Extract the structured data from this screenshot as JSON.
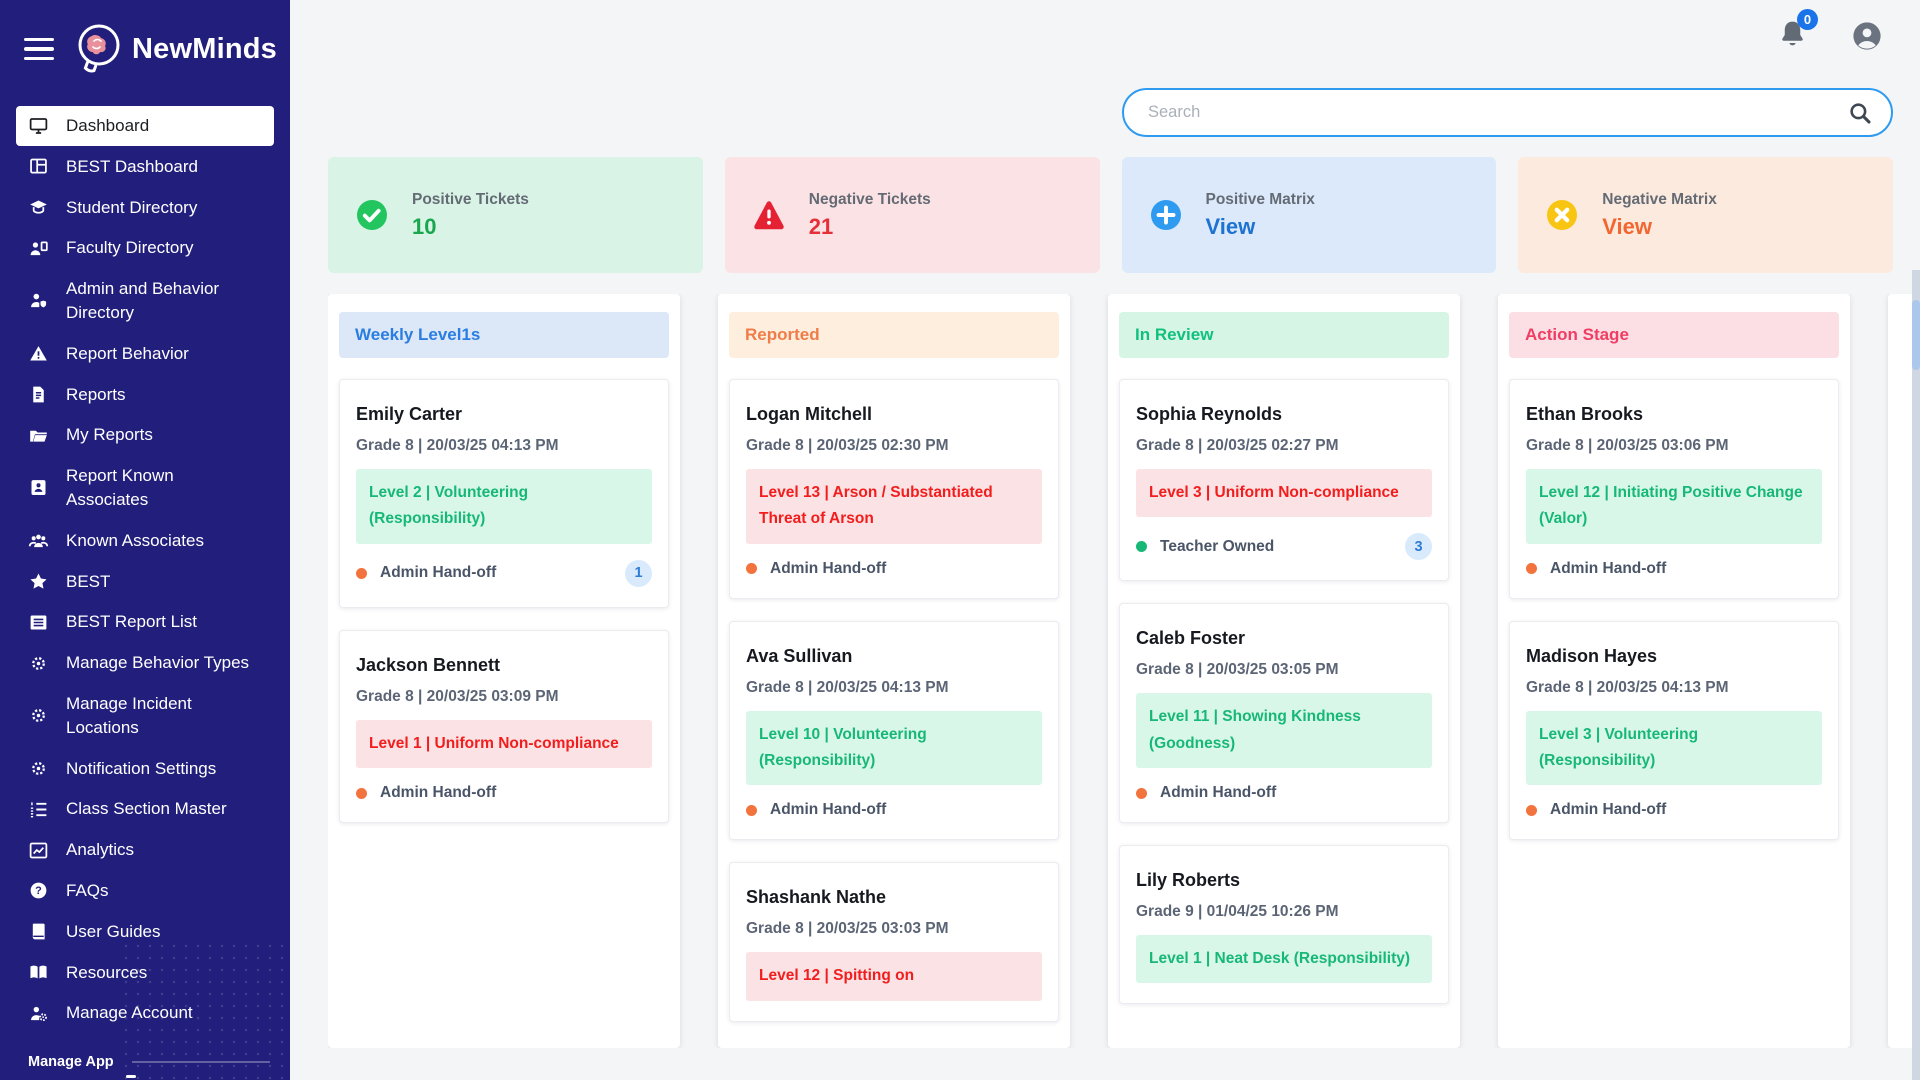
{
  "sidebar": {
    "brand": "NewMinds",
    "items": [
      {
        "label": "Dashboard",
        "icon": "monitor",
        "active": true
      },
      {
        "label": "BEST Dashboard",
        "icon": "grid"
      },
      {
        "label": "Student Directory",
        "icon": "graduation-cap"
      },
      {
        "label": "Faculty Directory",
        "icon": "person-board"
      },
      {
        "label": "Admin and Behavior Directory",
        "icon": "person-shield"
      },
      {
        "label": "Report Behavior",
        "icon": "warning"
      },
      {
        "label": "Reports",
        "icon": "document"
      },
      {
        "label": "My Reports",
        "icon": "folder"
      },
      {
        "label": "Report Known Associates",
        "icon": "contact-card"
      },
      {
        "label": "Known Associates",
        "icon": "people"
      },
      {
        "label": "BEST",
        "icon": "star"
      },
      {
        "label": "BEST Report List",
        "icon": "list-box"
      },
      {
        "label": "Manage Behavior Types",
        "icon": "gears"
      },
      {
        "label": "Manage Incident Locations",
        "icon": "gears"
      },
      {
        "label": "Notification Settings",
        "icon": "gears"
      },
      {
        "label": "Class Section Master",
        "icon": "ordered-list"
      },
      {
        "label": "Analytics",
        "icon": "chart"
      },
      {
        "label": "FAQs",
        "icon": "question-circle"
      },
      {
        "label": "User Guides",
        "icon": "book"
      },
      {
        "label": "Resources",
        "icon": "open-book"
      },
      {
        "label": "Manage Account",
        "icon": "person-gear"
      }
    ],
    "section_label": "Manage App"
  },
  "topbar": {
    "notification_count": "0",
    "search_placeholder": "Search"
  },
  "stat_cards": [
    {
      "label": "Positive Tickets",
      "value": "10",
      "icon": "check-circle",
      "bg": "#d9f3e6",
      "value_color": "#18a74d"
    },
    {
      "label": "Negative Tickets",
      "value": "21",
      "icon": "warning-triangle",
      "bg": "#fbe2e5",
      "value_color": "#e5303a"
    },
    {
      "label": "Positive Matrix",
      "value": "View",
      "icon": "plus-circle",
      "bg": "#dbe9fa",
      "value_color": "#1d72d2"
    },
    {
      "label": "Negative Matrix",
      "value": "View",
      "icon": "x-circle",
      "bg": "#fdeade",
      "value_color": "#f2662f"
    }
  ],
  "board": {
    "columns": [
      {
        "title": "Weekly Level1s",
        "header_bg": "#dce7f8",
        "header_color": "#2a7de1",
        "cards": [
          {
            "name": "Emily Carter",
            "meta": "Grade 8 | 20/03/25 04:13 PM",
            "level": "Level 2 | Volunteering (Responsibility)",
            "level_type": "positive",
            "owner": "Admin Hand-off",
            "owner_type": "admin",
            "badge": "1"
          },
          {
            "name": "Jackson Bennett",
            "meta": "Grade 8 | 20/03/25 03:09 PM",
            "level": "Level 1 | Uniform Non-compliance",
            "level_type": "negative",
            "owner": "Admin Hand-off",
            "owner_type": "admin"
          }
        ]
      },
      {
        "title": "Reported",
        "header_bg": "#fdeedd",
        "header_color": "#ef7d49",
        "cards": [
          {
            "name": "Logan Mitchell",
            "meta": "Grade 8 | 20/03/25 02:30 PM",
            "level": "Level 13 | Arson / Substantiated Threat of Arson",
            "level_type": "negative",
            "owner": "Admin Hand-off",
            "owner_type": "admin"
          },
          {
            "name": "Ava Sullivan",
            "meta": "Grade 8 | 20/03/25 04:13 PM",
            "level": "Level 10 | Volunteering (Responsibility)",
            "level_type": "positive",
            "owner": "Admin Hand-off",
            "owner_type": "admin"
          },
          {
            "name": "Shashank Nathe",
            "meta": "Grade 8 | 20/03/25 03:03 PM",
            "level": "Level 12 | Spitting on",
            "level_type": "negative"
          }
        ]
      },
      {
        "title": "In Review",
        "header_bg": "#d7f5e4",
        "header_color": "#10c17e",
        "cards": [
          {
            "name": "Sophia Reynolds",
            "meta": "Grade 8 | 20/03/25 02:27 PM",
            "level": "Level 3 | Uniform Non-compliance",
            "level_type": "negative",
            "owner": "Teacher Owned",
            "owner_type": "teacher",
            "badge": "3"
          },
          {
            "name": "Caleb Foster",
            "meta": "Grade 8 | 20/03/25 03:05 PM",
            "level": "Level 11 | Showing Kindness (Goodness)",
            "level_type": "positive",
            "owner": "Admin Hand-off",
            "owner_type": "admin"
          },
          {
            "name": "Lily Roberts",
            "meta": "Grade 9 | 01/04/25 10:26 PM",
            "level": "Level 1 | Neat Desk (Responsibility)",
            "level_type": "positive"
          }
        ]
      },
      {
        "title": "Action Stage",
        "header_bg": "#fcdfe5",
        "header_color": "#ef3d63",
        "cards": [
          {
            "name": "Ethan Brooks",
            "meta": "Grade 8 | 20/03/25 03:06 PM",
            "level": "Level 12 | Initiating Positive Change (Valor)",
            "level_type": "positive",
            "owner": "Admin Hand-off",
            "owner_type": "admin"
          },
          {
            "name": "Madison Hayes",
            "meta": "Grade 8 | 20/03/25 04:13 PM",
            "level": "Level 3 | Volunteering (Responsibility)",
            "level_type": "positive",
            "owner": "Admin Hand-off",
            "owner_type": "admin"
          }
        ]
      },
      {
        "title": "",
        "partial": true,
        "cards": []
      }
    ]
  },
  "colors": {
    "sidebar_bg": "#221e7c",
    "page_bg": "#f4f5f6",
    "search_border": "#2e9bf0",
    "notification_badge": "#1a73e8",
    "chip_positive_bg": "#d9f7e8",
    "chip_positive_text": "#17b877",
    "chip_negative_bg": "#fbe2e4",
    "chip_negative_text": "#f21d1d",
    "dot_admin": "#f2733d",
    "dot_teacher": "#17b877",
    "count_badge_bg": "#d8eafc",
    "count_badge_text": "#2e7cd6"
  }
}
